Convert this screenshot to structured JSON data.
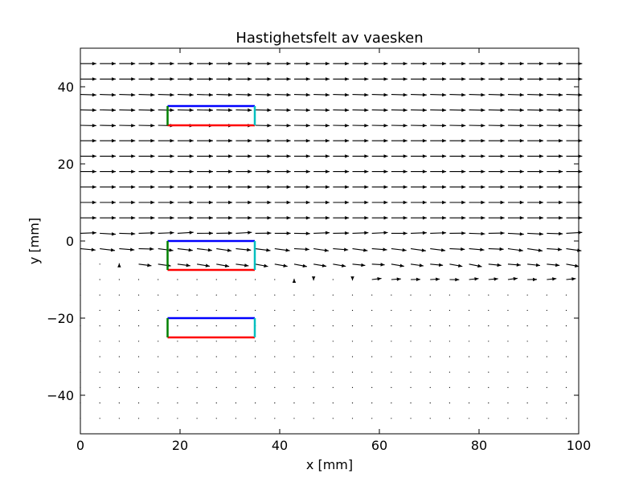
{
  "chart_data": {
    "type": "quiver",
    "title": "Hastighetsfelt av vaesken",
    "xlabel": "x [mm]",
    "ylabel": "y [mm]",
    "xlim": [
      0,
      100
    ],
    "ylim": [
      -50,
      50
    ],
    "xticks": [
      0,
      20,
      40,
      60,
      80,
      100
    ],
    "yticks": [
      -40,
      -20,
      0,
      20,
      40
    ],
    "grid": false,
    "vector_field": {
      "x_start": 0,
      "x_step": 3.9,
      "x_count": 26,
      "y_values": [
        46,
        42,
        38,
        34,
        30,
        26,
        22,
        18,
        14,
        10,
        6,
        2,
        -2,
        -6,
        -10,
        -14,
        -18,
        -22,
        -26,
        -30,
        -34,
        -38,
        -42,
        -46
      ],
      "scale_mm_per_unit": 3.2,
      "rows": [
        {
          "y": 46,
          "u": 1.0,
          "v": 0.0,
          "note": "uniform rightward flow"
        },
        {
          "y": 42,
          "u": 1.0,
          "v": 0.0
        },
        {
          "y": 38,
          "u": 1.0,
          "v": -0.03
        },
        {
          "y": 34,
          "u": 1.0,
          "v": -0.02
        },
        {
          "y": 30,
          "u": 1.0,
          "v": -0.02
        },
        {
          "y": 26,
          "u": 1.0,
          "v": 0.0
        },
        {
          "y": 22,
          "u": 1.0,
          "v": 0.0
        },
        {
          "y": 18,
          "u": 1.0,
          "v": 0.0
        },
        {
          "y": 14,
          "u": 1.0,
          "v": 0.0
        },
        {
          "y": 10,
          "u": 1.0,
          "v": 0.0
        },
        {
          "y": 6,
          "u": 1.0,
          "v": 0.0
        },
        {
          "y": 2,
          "u": 1.0,
          "v": 0.0
        },
        {
          "y": -2,
          "u": 0.95,
          "v": -0.08
        },
        {
          "y": -6,
          "u": 0.8,
          "v": -0.1
        },
        {
          "y": -10,
          "u": 0.6,
          "v": 0.05
        },
        {
          "y": -14,
          "u": 0.0,
          "v": 0.0
        },
        {
          "y": -18,
          "u": 0.0,
          "v": 0.0
        },
        {
          "y": -22,
          "u": 0.0,
          "v": 0.0
        },
        {
          "y": -26,
          "u": 0.0,
          "v": 0.0
        },
        {
          "y": -30,
          "u": 0.0,
          "v": 0.0
        },
        {
          "y": -34,
          "u": 0.0,
          "v": 0.0
        },
        {
          "y": -38,
          "u": 0.0,
          "v": 0.0
        },
        {
          "y": -42,
          "u": 0.0,
          "v": 0.0
        },
        {
          "y": -46,
          "u": 0.0,
          "v": 0.0
        }
      ]
    },
    "rectangles": [
      {
        "x0": 17.5,
        "x1": 35,
        "y0": 30,
        "y1": 35,
        "top_color": "#0000ff",
        "bottom_color": "#ff0000",
        "left_color": "#008000",
        "right_color": "#00bfbf"
      },
      {
        "x0": 17.5,
        "x1": 35,
        "y0": -7.5,
        "y1": 0,
        "top_color": "#0000ff",
        "bottom_color": "#ff0000",
        "left_color": "#008000",
        "right_color": "#00bfbf"
      },
      {
        "x0": 17.5,
        "x1": 35,
        "y0": -25,
        "y1": -20,
        "top_color": "#0000ff",
        "bottom_color": "#ff0000",
        "left_color": "#008000",
        "right_color": "#00bfbf"
      }
    ]
  }
}
